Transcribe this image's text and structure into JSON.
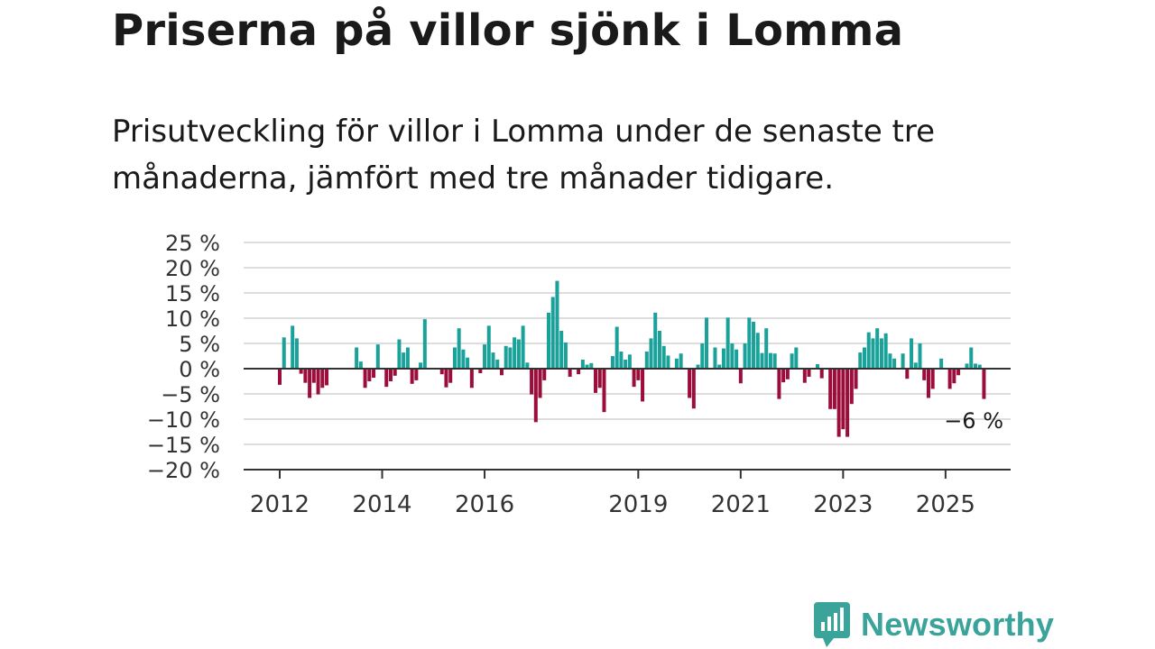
{
  "header": {
    "title": "Priserna på villor sjönk i Lomma",
    "subtitle": "Prisutveckling för villor i Lomma under de senaste tre månaderna, jämfört med tre månader tidigare."
  },
  "chart_data": {
    "type": "bar",
    "title": "Priserna på villor sjönk i Lomma",
    "subtitle": "Prisutveckling för villor i Lomma under de senaste tre månaderna, jämfört med tre månader tidigare.",
    "xlabel": "",
    "ylabel": "",
    "x_start": "2012-01",
    "frequency": "monthly",
    "ylim": [
      -20,
      25
    ],
    "y_ticks": [
      25,
      20,
      15,
      10,
      5,
      0,
      -5,
      -10,
      -15,
      -20
    ],
    "y_tick_labels": [
      "25 %",
      "20 %",
      "15 %",
      "10 %",
      "5 %",
      "0 %",
      "−5 %",
      "−10 %",
      "−15 %",
      "−20 %"
    ],
    "x_tick_labels": [
      "2012",
      "2014",
      "2016",
      "2019",
      "2021",
      "2023",
      "2025"
    ],
    "x_tick_dates": [
      "2012-01",
      "2014-01",
      "2016-01",
      "2019-01",
      "2021-01",
      "2023-01",
      "2025-01"
    ],
    "grid": true,
    "positive_color": "#19a19a",
    "negative_color": "#9b0d3a",
    "last_value_label": "−6 %",
    "values": [
      -3.2,
      6.2,
      null,
      8.5,
      6,
      -1,
      -2.8,
      -5.8,
      -2.8,
      -5.1,
      -3.8,
      -3.3,
      null,
      null,
      null,
      null,
      null,
      null,
      4.2,
      1.4,
      -3.8,
      -2.5,
      -1.8,
      4.8,
      null,
      -3.6,
      -2.5,
      -1.4,
      5.8,
      3.2,
      4.2,
      -3,
      -2.3,
      1.2,
      9.8,
      null,
      null,
      null,
      -1.1,
      -3.7,
      -2.8,
      4.2,
      8,
      3.8,
      2.2,
      -3.8,
      null,
      -0.9,
      4.8,
      8.5,
      3.2,
      1.8,
      -1.3,
      4.5,
      4.2,
      6.2,
      5.8,
      8.5,
      1.2,
      -5.1,
      -10.6,
      -5.8,
      -2.3,
      11.1,
      14.2,
      17.4,
      7.5,
      5.2,
      -1.6,
      null,
      -1.1,
      1.8,
      0.8,
      1.1,
      -4.8,
      -3.8,
      -8.6,
      null,
      2.5,
      8.3,
      3.4,
      1.8,
      2.8,
      -3.6,
      -2.3,
      -6.5,
      3.4,
      6,
      11.1,
      7.5,
      4.5,
      2.6,
      null,
      2,
      3,
      null,
      -5.8,
      -7.9,
      0.8,
      5,
      10.1,
      null,
      4.2,
      0.8,
      4,
      10.1,
      5,
      3.8,
      -2.9,
      5,
      10.1,
      9.3,
      7.1,
      3.1,
      8,
      3.1,
      3,
      -6,
      -2.7,
      -2.1,
      3,
      4.2,
      null,
      -2.8,
      -1.6,
      null,
      0.9,
      -1.9,
      null,
      -8,
      -8,
      -13.5,
      -12,
      -13.5,
      -7,
      -4,
      3.2,
      4.2,
      7.2,
      6,
      8,
      6,
      7,
      3,
      2,
      null,
      3,
      -2,
      6,
      1.2,
      5,
      -2.3,
      -5.8,
      -4,
      null,
      2,
      null,
      -4,
      -2.9,
      -1.3,
      null,
      1,
      4.2,
      1,
      0.8,
      -6
    ]
  },
  "branding": {
    "logo_text": "Newsworthy",
    "color": "#3aa39a"
  }
}
